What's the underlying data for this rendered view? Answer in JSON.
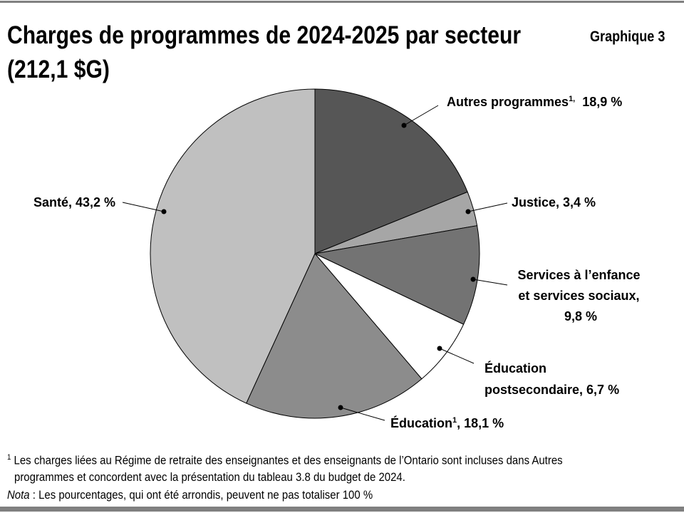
{
  "title_line1": "Charges de programmes de 2024-2025 par secteur",
  "title_line2": "(212,1 $G)",
  "chart_number": "Graphique 3",
  "chart_data": {
    "type": "pie",
    "title": "Charges de programmes de 2024-2025 par secteur (212,1 $G)",
    "start": "top",
    "direction": "clockwise",
    "slices": [
      {
        "name": "Autres programmes",
        "footnote": "1",
        "value": 18.9,
        "label": "18,9 %",
        "color": "#565656"
      },
      {
        "name": "Justice",
        "value": 3.4,
        "label": "3,4 %",
        "color": "#a6a6a6"
      },
      {
        "name": "Services à l’enfance et services sociaux",
        "value": 9.8,
        "label": "9,8 %",
        "color": "#737373"
      },
      {
        "name": "Éducation postsecondaire",
        "value": 6.7,
        "label": "6,7 %",
        "color": "#ffffff"
      },
      {
        "name": "Éducation",
        "footnote": "1",
        "value": 18.1,
        "label": "18,1 %",
        "color": "#8c8c8c"
      },
      {
        "name": "Santé",
        "value": 43.2,
        "label": "43,2 %",
        "color": "#c0c0c0"
      }
    ]
  },
  "labels": {
    "autres": {
      "text": "Autres programmes",
      "sup": "1,",
      "value": "  18,9 %"
    },
    "justice": "Justice, 3,4 %",
    "services": [
      "Services à l’enfance",
      "et services sociaux,",
      "9,8 %"
    ],
    "postsec": [
      "Éducation",
      "postsecondaire, 6,7 %"
    ],
    "education": {
      "text": "Éducation",
      "sup": "1",
      "value": ", 18,1 %"
    },
    "sante": "Santé, 43,2 %"
  },
  "footnotes": {
    "note1_sup": "1",
    "note1_line1": " Les charges liées au Régime de retraite des enseignantes et des enseignants de l’Ontario sont incluses dans Autres",
    "note1_line2": "programmes et concordent  avec la présentation du tableau 3.8 du budget de 2024.",
    "nota_label": "Nota",
    "nota_text": " : Les pourcentages, qui ont été arrondis, peuvent ne pas totaliser 100 %"
  }
}
